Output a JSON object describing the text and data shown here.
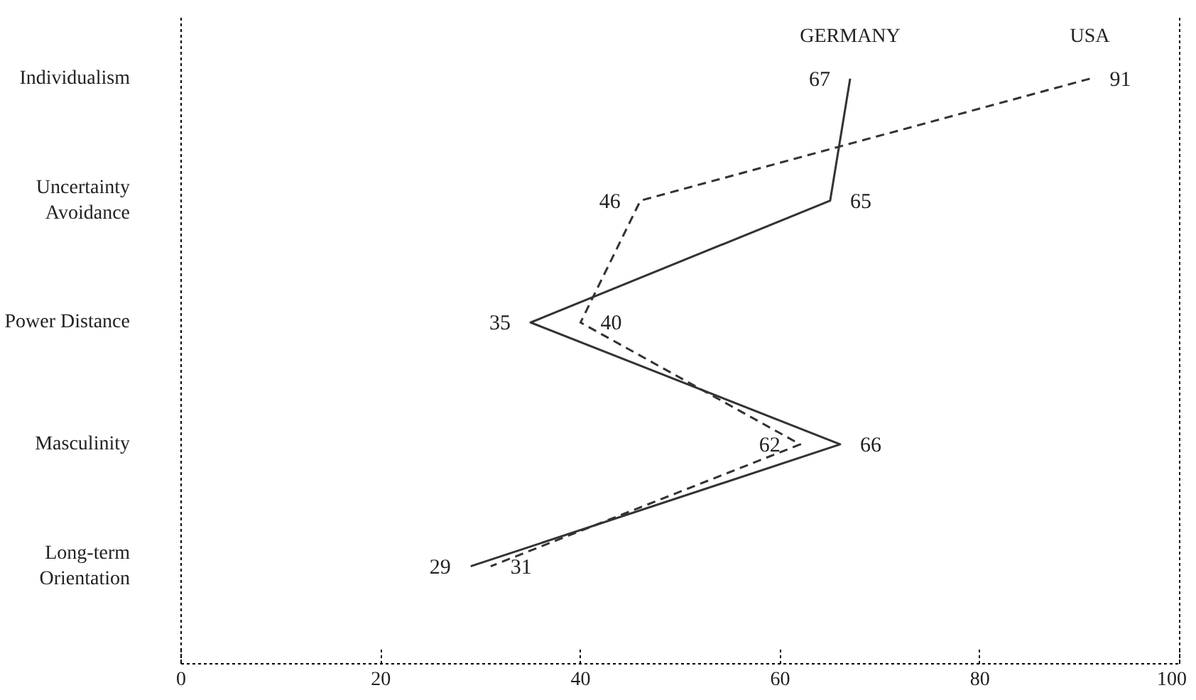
{
  "chart_data": {
    "type": "line",
    "orientation": "horizontal",
    "categories": [
      "Individualism",
      "Uncertainty\nAvoidance",
      "Power Distance",
      "Masculinity",
      "Long-term\nOrientation"
    ],
    "series": [
      {
        "name": "GERMANY",
        "color": "#333333",
        "line_style": "solid",
        "values": [
          67,
          65,
          35,
          66,
          29
        ]
      },
      {
        "name": "USA",
        "color": "#333333",
        "line_style": "dashed",
        "values": [
          91,
          46,
          40,
          62,
          31
        ]
      }
    ],
    "xlim": [
      0,
      100
    ],
    "xticks": [
      0,
      20,
      40,
      60,
      80,
      100
    ],
    "data_labels": true,
    "grid": false
  }
}
